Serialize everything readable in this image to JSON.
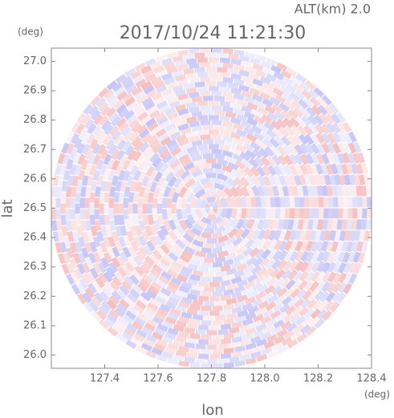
{
  "chart_data": {
    "type": "radar-ppi",
    "title": "2017/10/24 11:21:30",
    "altitude_label": "ALT(km) 2.0",
    "x_label": "lon",
    "y_label": "lat",
    "x_unit": "(deg)",
    "y_unit": "(deg)",
    "xlim": [
      127.2,
      128.4
    ],
    "xticks": [
      127.4,
      127.6,
      127.8,
      {
        "value": 128.0,
        "label": "128.0"
      },
      128.2,
      128.4
    ],
    "ylim": [
      25.955,
      27.045
    ],
    "yticks": [
      {
        "value": 26.0,
        "label": "26.0"
      },
      26.1,
      26.2,
      26.3,
      26.4,
      26.5,
      26.6,
      26.7,
      26.8,
      26.9,
      {
        "value": 27.0,
        "label": "27.0"
      }
    ]
  }
}
